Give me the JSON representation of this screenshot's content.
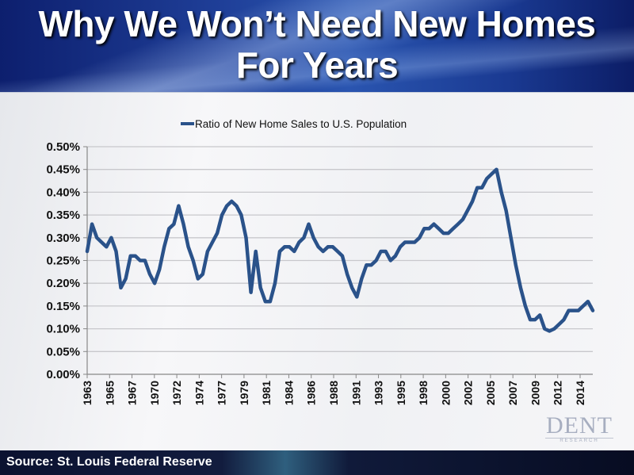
{
  "header": {
    "title_line1": "Why We Won’t Need New Homes",
    "title_line2": "For Years"
  },
  "footer": {
    "source": "Source: St. Louis Federal Reserve"
  },
  "logo": {
    "name": "DENT",
    "sub": "RESEARCH"
  },
  "colors": {
    "line": "#2a528a",
    "grid": "#c8c8cc"
  },
  "chart_data": {
    "type": "line",
    "title": "",
    "xlabel": "",
    "ylabel": "",
    "legend": {
      "position": "top-center",
      "entries": [
        "Ratio of New Home Sales to U.S. Population"
      ]
    },
    "ylim": [
      0,
      0.5
    ],
    "xlim": [
      1963,
      2015.5
    ],
    "grid": true,
    "y_ticks": [
      "0.00%",
      "0.05%",
      "0.10%",
      "0.15%",
      "0.20%",
      "0.25%",
      "0.30%",
      "0.35%",
      "0.40%",
      "0.45%",
      "0.50%"
    ],
    "x_ticks": [
      "1963",
      "1965",
      "1967",
      "1970",
      "1972",
      "1974",
      "1977",
      "1979",
      "1981",
      "1984",
      "1986",
      "1988",
      "1991",
      "1993",
      "1995",
      "1998",
      "2000",
      "2002",
      "2005",
      "2007",
      "2009",
      "2012",
      "2014"
    ],
    "series": [
      {
        "name": "Ratio of New Home Sales to U.S. Population",
        "unit": "percent",
        "x": [
          1963,
          1963.5,
          1964,
          1964.5,
          1965,
          1965.5,
          1966,
          1966.5,
          1967,
          1967.5,
          1968,
          1968.5,
          1969,
          1969.5,
          1970,
          1970.5,
          1971,
          1971.5,
          1972,
          1972.5,
          1973,
          1973.5,
          1974,
          1974.5,
          1975,
          1975.5,
          1976,
          1976.5,
          1977,
          1977.5,
          1978,
          1978.5,
          1979,
          1979.5,
          1980,
          1980.5,
          1981,
          1981.5,
          1982,
          1982.5,
          1983,
          1983.5,
          1984,
          1984.5,
          1985,
          1985.5,
          1986,
          1986.5,
          1987,
          1987.5,
          1988,
          1988.5,
          1989,
          1989.5,
          1990,
          1990.5,
          1991,
          1991.5,
          1992,
          1992.5,
          1993,
          1993.5,
          1994,
          1994.5,
          1995,
          1995.5,
          1996,
          1996.5,
          1997,
          1997.5,
          1998,
          1998.5,
          1999,
          1999.5,
          2000,
          2000.5,
          2001,
          2001.5,
          2002,
          2002.5,
          2003,
          2003.5,
          2004,
          2004.5,
          2005,
          2005.5,
          2006,
          2006.5,
          2007,
          2007.5,
          2008,
          2008.5,
          2009,
          2009.5,
          2010,
          2010.5,
          2011,
          2011.5,
          2012,
          2012.5,
          2013,
          2013.5,
          2014,
          2014.5,
          2015,
          2015.5
        ],
        "values": [
          0.27,
          0.33,
          0.3,
          0.29,
          0.28,
          0.3,
          0.27,
          0.19,
          0.21,
          0.26,
          0.26,
          0.25,
          0.25,
          0.22,
          0.2,
          0.23,
          0.28,
          0.32,
          0.33,
          0.37,
          0.33,
          0.28,
          0.25,
          0.21,
          0.22,
          0.27,
          0.29,
          0.31,
          0.35,
          0.37,
          0.38,
          0.37,
          0.35,
          0.3,
          0.18,
          0.27,
          0.19,
          0.16,
          0.16,
          0.2,
          0.27,
          0.28,
          0.28,
          0.27,
          0.29,
          0.3,
          0.33,
          0.3,
          0.28,
          0.27,
          0.28,
          0.28,
          0.27,
          0.26,
          0.22,
          0.19,
          0.17,
          0.21,
          0.24,
          0.24,
          0.25,
          0.27,
          0.27,
          0.25,
          0.26,
          0.28,
          0.29,
          0.29,
          0.29,
          0.3,
          0.32,
          0.32,
          0.33,
          0.32,
          0.31,
          0.31,
          0.32,
          0.33,
          0.34,
          0.36,
          0.38,
          0.41,
          0.41,
          0.43,
          0.44,
          0.45,
          0.4,
          0.36,
          0.3,
          0.24,
          0.19,
          0.15,
          0.12,
          0.12,
          0.13,
          0.1,
          0.095,
          0.1,
          0.11,
          0.12,
          0.14,
          0.14,
          0.14,
          0.15,
          0.16,
          0.14
        ]
      }
    ]
  }
}
